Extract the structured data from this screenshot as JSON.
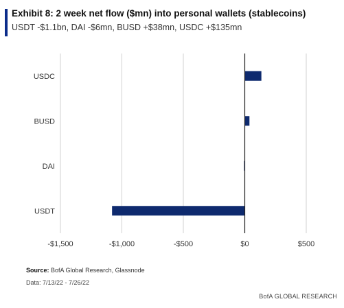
{
  "header": {
    "title": "Exhibit 8: 2 week net flow ($mn) into personal wallets (stablecoins)",
    "subtitle": "USDT -$1.1bn, DAI -$6mn, BUSD +$38mn, USDC +$135mn"
  },
  "footer": {
    "source_label": "Source:",
    "source_text": "BofA Global Research, Glassnode",
    "date": "Data: 7/13/22 - 7/26/22",
    "brand": "BofA GLOBAL RESEARCH"
  },
  "colors": {
    "accent": "#0b2c8a",
    "bar": "#0e2a6e",
    "grid": "#d0d0d0",
    "axis": "#222222"
  },
  "chart_data": {
    "type": "bar",
    "orientation": "horizontal",
    "categories": [
      "USDC",
      "BUSD",
      "DAI",
      "USDT"
    ],
    "values": [
      135,
      38,
      -6,
      -1080
    ],
    "xlim": [
      -1500,
      500
    ],
    "xticks": [
      -1500,
      -1000,
      -500,
      0,
      500
    ],
    "xtick_labels": [
      "-$1,500",
      "-$1,000",
      "-$500",
      "$0",
      "$500"
    ],
    "grid": "vertical",
    "legend": "none"
  }
}
